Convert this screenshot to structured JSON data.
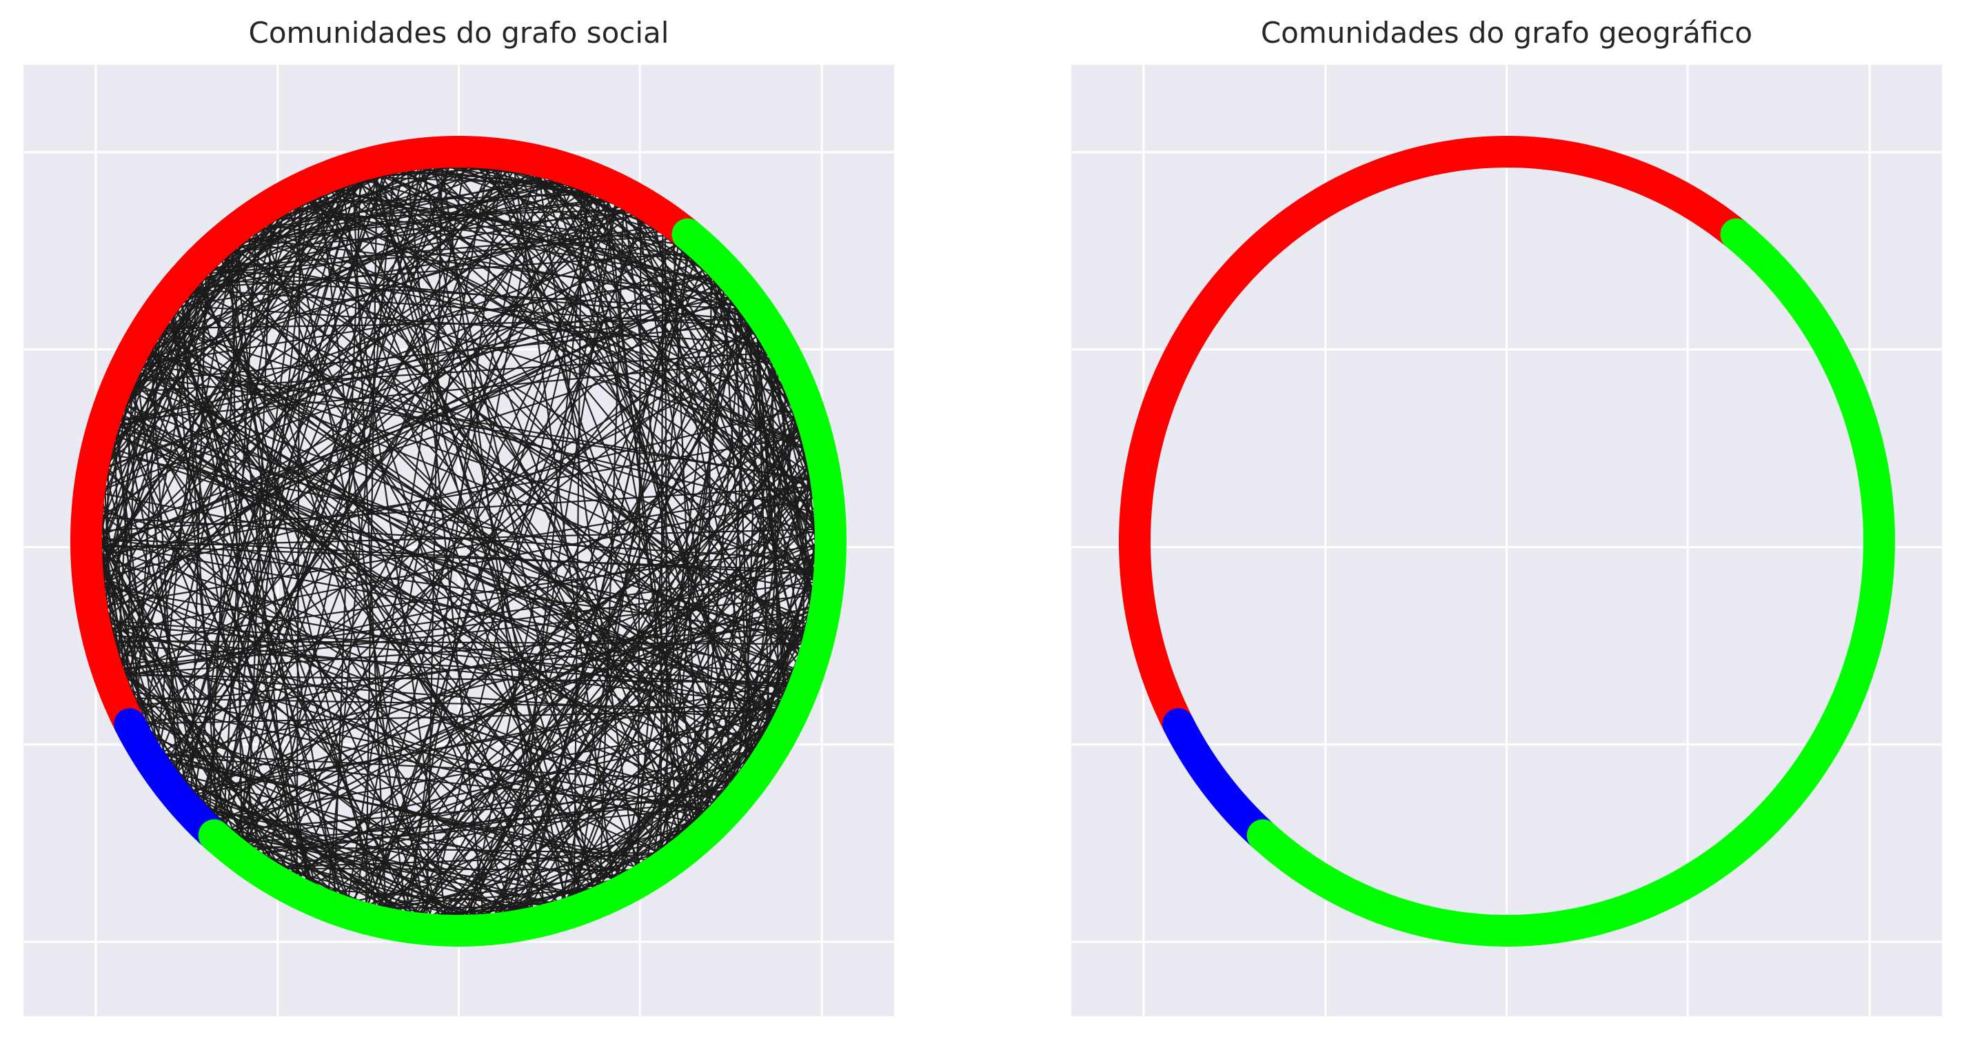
{
  "panels": [
    {
      "title": "Comunidades do grafo social",
      "communities": [
        {
          "color": "#ff0000",
          "from_deg": 52,
          "to_deg": 208
        },
        {
          "color": "#0000ff",
          "from_deg": 208,
          "to_deg": 229
        },
        {
          "color": "#00ff00",
          "from_deg": 229,
          "to_deg": 412
        }
      ],
      "edges_shown": true
    },
    {
      "title": "Comunidades do grafo geográfico",
      "communities": [
        {
          "color": "#ff0000",
          "from_deg": 52,
          "to_deg": 208
        },
        {
          "color": "#0000ff",
          "from_deg": 208,
          "to_deg": 229
        },
        {
          "color": "#00ff00",
          "from_deg": 229,
          "to_deg": 412
        }
      ],
      "edges_shown": false
    }
  ],
  "style": {
    "axes_background": "#eaeaf2",
    "grid_color": "#ffffff",
    "edge_color": "#1a1a1a"
  }
}
